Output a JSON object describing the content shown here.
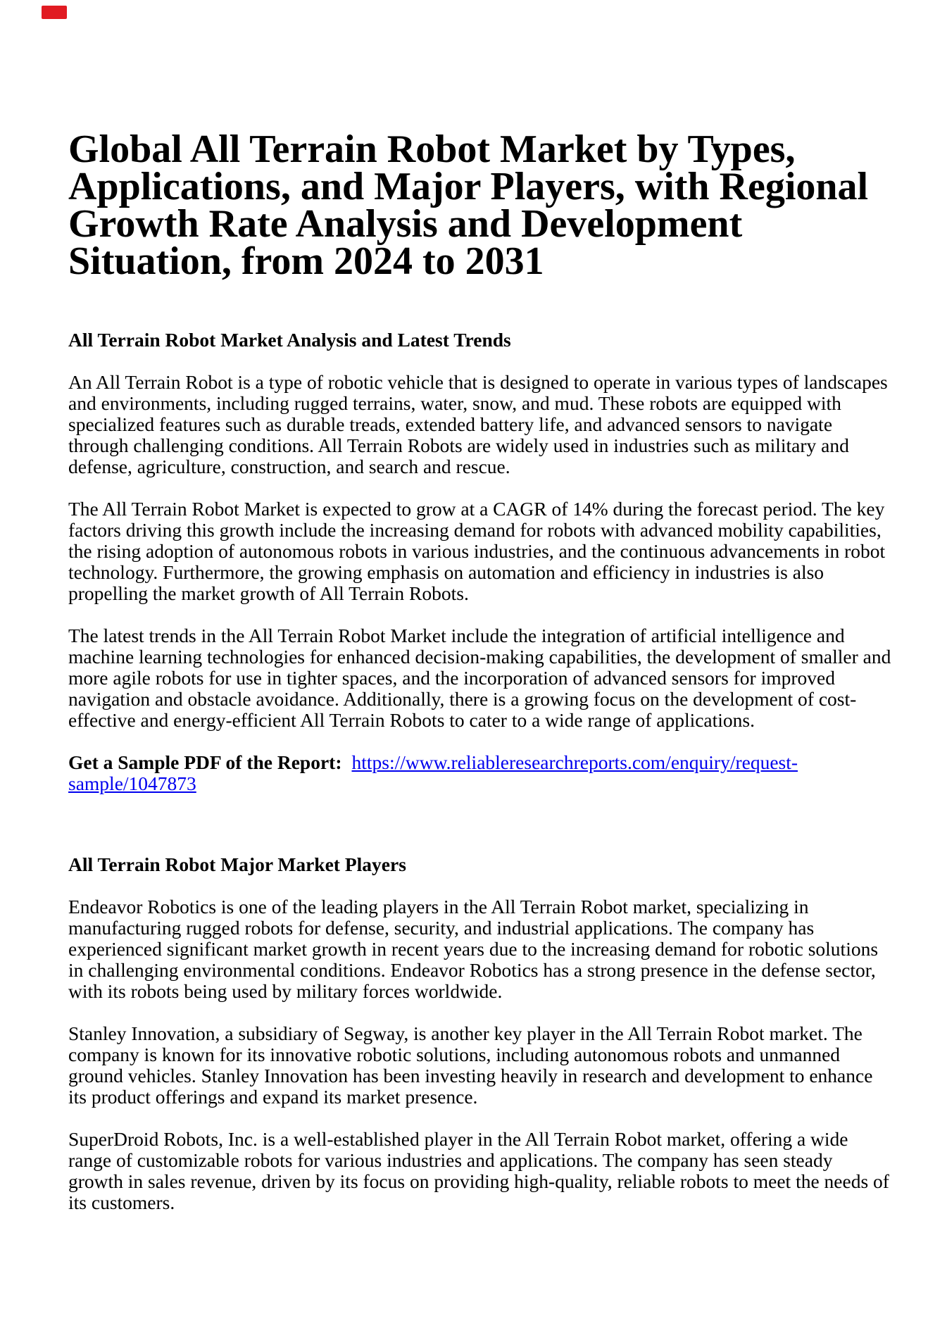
{
  "colors": {
    "text": "#000000",
    "link_blue": "#0000ee",
    "logo_red": "#e11b22",
    "background": "#ffffff"
  },
  "logo": {
    "name": "red-logo-mark"
  },
  "report": {
    "title": "Global All Terrain Robot Market by Types,\nApplications, and Major Players, with Regional\nGrowth Rate Analysis and Development\nSituation, from 2024 to 2031"
  },
  "analysis": {
    "heading": "All Terrain Robot Market Analysis and Latest Trends",
    "paragraphs": [
      "An All Terrain Robot is a type of robotic vehicle that is designed to operate in various types of landscapes\nand environments, including rugged terrains, water, snow, and mud. These robots are equipped with\nspecialized features such as durable treads, extended battery life, and advanced sensors to navigate\nthrough challenging conditions. All Terrain Robots are widely used in industries such as military and\ndefense, agriculture, construction, and search and rescue.",
      "The All Terrain Robot Market is expected to grow at a CAGR of 14% during the forecast period. The key\nfactors driving this growth include the increasing demand for robots with advanced mobility capabilities,\nthe rising adoption of autonomous robots in various industries, and the continuous advancements in robot\ntechnology. Furthermore, the growing emphasis on automation and efficiency in industries is also\npropelling the market growth of All Terrain Robots.",
      "The latest trends in the All Terrain Robot Market include the integration of artificial intelligence and\nmachine learning technologies for enhanced decision-making capabilities, the development of smaller and\nmore agile robots for use in tighter spaces, and the incorporation of advanced sensors for improved\nnavigation and obstacle avoidance. Additionally, there is a growing focus on the development of cost-\neffective and energy-efficient All Terrain Robots to cater to a wide range of applications."
    ]
  },
  "sample": {
    "label": "Get a Sample PDF of the Report:",
    "link_text": "https://www.reliableresearchreports.com/enquiry/request-\nsample/1047873"
  },
  "players": {
    "heading": "All Terrain Robot Major Market Players",
    "paragraphs": [
      "Endeavor Robotics is one of the leading players in the All Terrain Robot market, specializing in\nmanufacturing rugged robots for defense, security, and industrial applications. The company has\nexperienced significant market growth in recent years due to the increasing demand for robotic solutions\nin challenging environmental conditions. Endeavor Robotics has a strong presence in the defense sector,\nwith its robots being used by military forces worldwide.",
      "Stanley Innovation, a subsidiary of Segway, is another key player in the All Terrain Robot market. The\ncompany is known for its innovative robotic solutions, including autonomous robots and unmanned\nground vehicles. Stanley Innovation has been investing heavily in research and development to enhance\nits product offerings and expand its market presence.",
      "SuperDroid Robots, Inc. is a well-established player in the All Terrain Robot market, offering a wide\nrange of customizable robots for various industries and applications. The company has seen steady\ngrowth in sales revenue, driven by its focus on providing high-quality, reliable robots to meet the needs of\nits customers."
    ]
  }
}
